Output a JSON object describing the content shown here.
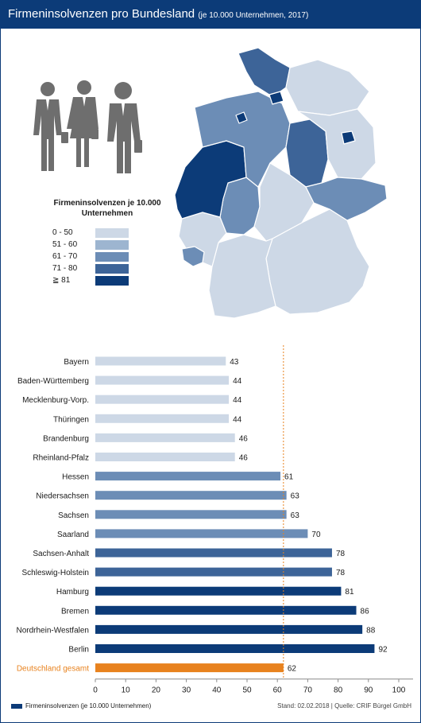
{
  "header": {
    "title": "Firmeninsolvenzen pro Bundesland",
    "subtitle": "(je 10.000 Unternehmen, 2017)"
  },
  "legend": {
    "title": "Firmeninsolvenzen je 10.000 Unternehmen",
    "items": [
      {
        "label": "0 - 50",
        "color": "#cdd8e6"
      },
      {
        "label": "51 - 60",
        "color": "#9db5d0"
      },
      {
        "label": "61 - 70",
        "color": "#6c8db6"
      },
      {
        "label": "71 - 80",
        "color": "#3d6498"
      },
      {
        "label": "≧ 81",
        "color": "#0c3b78"
      }
    ]
  },
  "colors": {
    "header": "#0c3b78",
    "highlight": "#e8821e",
    "reference_line": "#e8821e"
  },
  "chart_data": {
    "type": "bar",
    "orientation": "horizontal",
    "categories": [
      "Bayern",
      "Baden-Württemberg",
      "Mecklenburg-Vorp.",
      "Thüringen",
      "Brandenburg",
      "Rheinland-Pfalz",
      "Hessen",
      "Niedersachsen",
      "Sachsen",
      "Saarland",
      "Sachsen-Anhalt",
      "Schleswig-Holstein",
      "Hamburg",
      "Bremen",
      "Nordrhein-Westfalen",
      "Berlin",
      "Deutschland gesamt"
    ],
    "values": [
      43,
      44,
      44,
      44,
      46,
      46,
      61,
      63,
      63,
      70,
      78,
      78,
      81,
      86,
      88,
      92,
      62
    ],
    "bar_colors": [
      "#cdd8e6",
      "#cdd8e6",
      "#cdd8e6",
      "#cdd8e6",
      "#cdd8e6",
      "#cdd8e6",
      "#6c8db6",
      "#6c8db6",
      "#6c8db6",
      "#6c8db6",
      "#3d6498",
      "#3d6498",
      "#0c3b78",
      "#0c3b78",
      "#0c3b78",
      "#0c3b78",
      "#e8821e"
    ],
    "highlight_category": "Deutschland gesamt",
    "reference_value": 62,
    "xlim": [
      0,
      100
    ],
    "xticks": [
      0,
      10,
      20,
      30,
      40,
      50,
      60,
      70,
      80,
      90,
      100
    ],
    "xlabel": "",
    "ylabel": ""
  },
  "footer": {
    "legend_label": "Firmeninsolvenzen (je 10.000 Unternehmen)",
    "source": "Stand: 02.02.2018 | Quelle: CRIF Bürgel GmbH"
  }
}
